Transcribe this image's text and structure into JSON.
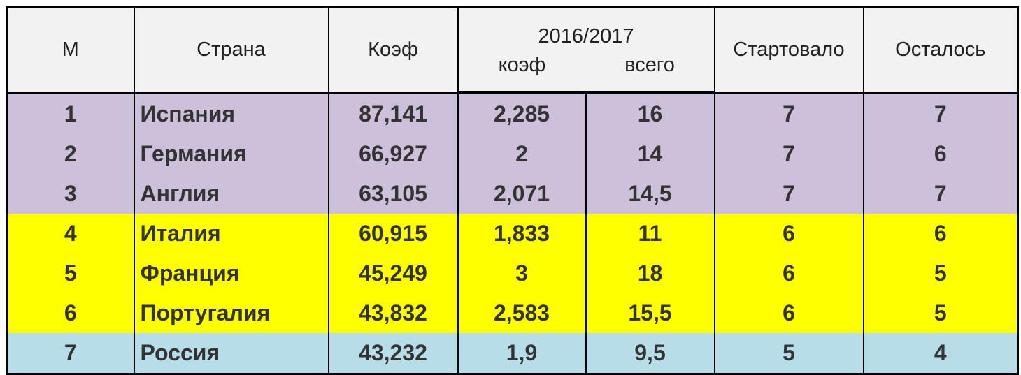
{
  "header": {
    "m": "М",
    "country": "Страна",
    "coef": "Коэф",
    "season": "2016/2017",
    "season_coef": "коэф",
    "season_total": "всего",
    "started": "Стартовало",
    "remaining": "Осталось"
  },
  "table": {
    "rows": [
      {
        "cells": [
          "1",
          "Испания",
          "87,141",
          "2,285",
          "16",
          "7",
          "7"
        ],
        "color": "#ccc0da"
      },
      {
        "cells": [
          "2",
          "Германия",
          "66,927",
          "2",
          "14",
          "7",
          "6"
        ],
        "color": "#ccc0da"
      },
      {
        "cells": [
          "3",
          "Англия",
          "63,105",
          "2,071",
          "14,5",
          "7",
          "7"
        ],
        "color": "#ccc0da"
      },
      {
        "cells": [
          "4",
          "Италия",
          "60,915",
          "1,833",
          "11",
          "6",
          "6"
        ],
        "color": "#ffff00"
      },
      {
        "cells": [
          "5",
          "Франция",
          "45,249",
          "3",
          "18",
          "6",
          "5"
        ],
        "color": "#ffff00"
      },
      {
        "cells": [
          "6",
          "Португалия",
          "43,832",
          "2,583",
          "15,5",
          "6",
          "5"
        ],
        "color": "#ffff00"
      },
      {
        "cells": [
          "7",
          "Россия",
          "43,232",
          "1,9",
          "9,5",
          "5",
          "4"
        ],
        "color": "#b7dee8"
      }
    ]
  }
}
